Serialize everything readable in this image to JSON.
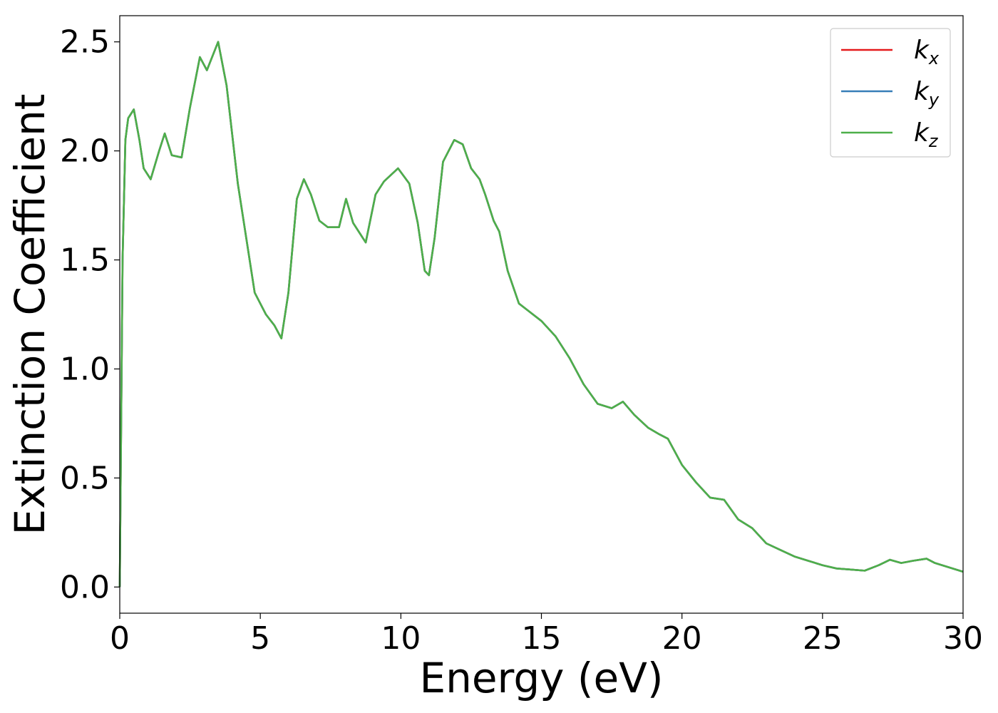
{
  "chart_data": {
    "type": "line",
    "xlabel": "Energy (eV)",
    "ylabel": "Extinction Coefficient",
    "xlim": [
      0,
      30
    ],
    "ylim": [
      -0.12,
      2.62
    ],
    "xticks": [
      0,
      5,
      10,
      15,
      20,
      25,
      30
    ],
    "xtick_labels": [
      "0",
      "5",
      "10",
      "15",
      "20",
      "25",
      "30"
    ],
    "yticks": [
      0.0,
      0.5,
      1.0,
      1.5,
      2.0,
      2.5
    ],
    "ytick_labels": [
      "0.0",
      "0.5",
      "1.0",
      "1.5",
      "2.0",
      "2.5"
    ],
    "grid": false,
    "legend_position": "top-right",
    "series": [
      {
        "name": "k",
        "subscript": "x",
        "color": "#e41a1c",
        "x": [
          0,
          0.1,
          0.2,
          0.3,
          0.5,
          0.7,
          0.85,
          1.1,
          1.4,
          1.6,
          1.85,
          2.2,
          2.5,
          2.85,
          3.1,
          3.5,
          3.8,
          4.2,
          4.5,
          4.8,
          5.2,
          5.5,
          5.75,
          6.0,
          6.3,
          6.55,
          6.8,
          7.1,
          7.4,
          7.8,
          8.05,
          8.3,
          8.75,
          9.1,
          9.4,
          9.9,
          10.3,
          10.6,
          10.85,
          11.0,
          11.2,
          11.5,
          11.9,
          12.2,
          12.5,
          12.8,
          13.0,
          13.3,
          13.5,
          13.8,
          14.2,
          14.5,
          15.0,
          15.5,
          16.0,
          16.5,
          17.0,
          17.5,
          17.9,
          18.3,
          18.8,
          19.2,
          19.5,
          20.0,
          20.5,
          21.0,
          21.5,
          22.0,
          22.5,
          23.0,
          23.5,
          24.0,
          24.5,
          25.0,
          25.5,
          26.0,
          26.5,
          27.0,
          27.4,
          27.8,
          28.2,
          28.7,
          29.0,
          29.5,
          30.0
        ],
        "values": [
          0.0,
          1.5,
          2.05,
          2.15,
          2.19,
          2.05,
          1.92,
          1.87,
          2.0,
          2.08,
          1.98,
          1.97,
          2.2,
          2.43,
          2.37,
          2.5,
          2.3,
          1.85,
          1.6,
          1.35,
          1.25,
          1.2,
          1.14,
          1.35,
          1.78,
          1.87,
          1.8,
          1.68,
          1.65,
          1.65,
          1.78,
          1.67,
          1.58,
          1.8,
          1.86,
          1.92,
          1.85,
          1.67,
          1.45,
          1.43,
          1.6,
          1.95,
          2.05,
          2.03,
          1.92,
          1.87,
          1.8,
          1.68,
          1.63,
          1.45,
          1.3,
          1.27,
          1.22,
          1.15,
          1.05,
          0.93,
          0.84,
          0.82,
          0.85,
          0.79,
          0.73,
          0.7,
          0.68,
          0.56,
          0.48,
          0.41,
          0.4,
          0.31,
          0.27,
          0.2,
          0.17,
          0.14,
          0.12,
          0.1,
          0.085,
          0.08,
          0.075,
          0.1,
          0.125,
          0.11,
          0.12,
          0.13,
          0.11,
          0.09,
          0.07
        ]
      },
      {
        "name": "k",
        "subscript": "y",
        "color": "#377eb8",
        "x": [
          0,
          0.1,
          0.2,
          0.3,
          0.5,
          0.7,
          0.85,
          1.1,
          1.4,
          1.6,
          1.85,
          2.2,
          2.5,
          2.85,
          3.1,
          3.5,
          3.8,
          4.2,
          4.5,
          4.8,
          5.2,
          5.5,
          5.75,
          6.0,
          6.3,
          6.55,
          6.8,
          7.1,
          7.4,
          7.8,
          8.05,
          8.3,
          8.75,
          9.1,
          9.4,
          9.9,
          10.3,
          10.6,
          10.85,
          11.0,
          11.2,
          11.5,
          11.9,
          12.2,
          12.5,
          12.8,
          13.0,
          13.3,
          13.5,
          13.8,
          14.2,
          14.5,
          15.0,
          15.5,
          16.0,
          16.5,
          17.0,
          17.5,
          17.9,
          18.3,
          18.8,
          19.2,
          19.5,
          20.0,
          20.5,
          21.0,
          21.5,
          22.0,
          22.5,
          23.0,
          23.5,
          24.0,
          24.5,
          25.0,
          25.5,
          26.0,
          26.5,
          27.0,
          27.4,
          27.8,
          28.2,
          28.7,
          29.0,
          29.5,
          30.0
        ],
        "values": [
          0.0,
          1.5,
          2.05,
          2.15,
          2.19,
          2.05,
          1.92,
          1.87,
          2.0,
          2.08,
          1.98,
          1.97,
          2.2,
          2.43,
          2.37,
          2.5,
          2.3,
          1.85,
          1.6,
          1.35,
          1.25,
          1.2,
          1.14,
          1.35,
          1.78,
          1.87,
          1.8,
          1.68,
          1.65,
          1.65,
          1.78,
          1.67,
          1.58,
          1.8,
          1.86,
          1.92,
          1.85,
          1.67,
          1.45,
          1.43,
          1.6,
          1.95,
          2.05,
          2.03,
          1.92,
          1.87,
          1.8,
          1.68,
          1.63,
          1.45,
          1.3,
          1.27,
          1.22,
          1.15,
          1.05,
          0.93,
          0.84,
          0.82,
          0.85,
          0.79,
          0.73,
          0.7,
          0.68,
          0.56,
          0.48,
          0.41,
          0.4,
          0.31,
          0.27,
          0.2,
          0.17,
          0.14,
          0.12,
          0.1,
          0.085,
          0.08,
          0.075,
          0.1,
          0.125,
          0.11,
          0.12,
          0.13,
          0.11,
          0.09,
          0.07
        ]
      },
      {
        "name": "k",
        "subscript": "z",
        "color": "#4daf4a",
        "x": [
          0,
          0.1,
          0.2,
          0.3,
          0.5,
          0.7,
          0.85,
          1.1,
          1.4,
          1.6,
          1.85,
          2.2,
          2.5,
          2.85,
          3.1,
          3.5,
          3.8,
          4.2,
          4.5,
          4.8,
          5.2,
          5.5,
          5.75,
          6.0,
          6.3,
          6.55,
          6.8,
          7.1,
          7.4,
          7.8,
          8.05,
          8.3,
          8.75,
          9.1,
          9.4,
          9.9,
          10.3,
          10.6,
          10.85,
          11.0,
          11.2,
          11.5,
          11.9,
          12.2,
          12.5,
          12.8,
          13.0,
          13.3,
          13.5,
          13.8,
          14.2,
          14.5,
          15.0,
          15.5,
          16.0,
          16.5,
          17.0,
          17.5,
          17.9,
          18.3,
          18.8,
          19.2,
          19.5,
          20.0,
          20.5,
          21.0,
          21.5,
          22.0,
          22.5,
          23.0,
          23.5,
          24.0,
          24.5,
          25.0,
          25.5,
          26.0,
          26.5,
          27.0,
          27.4,
          27.8,
          28.2,
          28.7,
          29.0,
          29.5,
          30.0
        ],
        "values": [
          0.0,
          1.5,
          2.05,
          2.15,
          2.19,
          2.05,
          1.92,
          1.87,
          2.0,
          2.08,
          1.98,
          1.97,
          2.2,
          2.43,
          2.37,
          2.5,
          2.3,
          1.85,
          1.6,
          1.35,
          1.25,
          1.2,
          1.14,
          1.35,
          1.78,
          1.87,
          1.8,
          1.68,
          1.65,
          1.65,
          1.78,
          1.67,
          1.58,
          1.8,
          1.86,
          1.92,
          1.85,
          1.67,
          1.45,
          1.43,
          1.6,
          1.95,
          2.05,
          2.03,
          1.92,
          1.87,
          1.8,
          1.68,
          1.63,
          1.45,
          1.3,
          1.27,
          1.22,
          1.15,
          1.05,
          0.93,
          0.84,
          0.82,
          0.85,
          0.79,
          0.73,
          0.7,
          0.68,
          0.56,
          0.48,
          0.41,
          0.4,
          0.31,
          0.27,
          0.2,
          0.17,
          0.14,
          0.12,
          0.1,
          0.085,
          0.08,
          0.075,
          0.1,
          0.125,
          0.11,
          0.12,
          0.13,
          0.11,
          0.09,
          0.07
        ]
      }
    ]
  }
}
